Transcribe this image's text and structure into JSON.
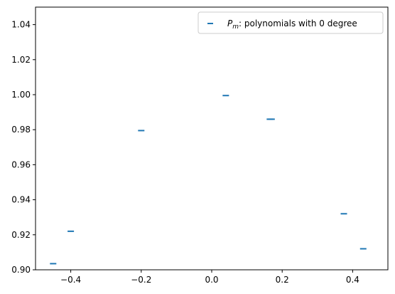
{
  "chart_data": {
    "type": "scatter",
    "marker": "hline",
    "color": "#1f77b4",
    "title": "",
    "xlabel": "",
    "ylabel": "",
    "xlim": [
      -0.5,
      0.5
    ],
    "ylim": [
      0.9,
      1.05
    ],
    "xticks": [
      -0.4,
      -0.2,
      0.0,
      0.2,
      0.4
    ],
    "xtick_labels": [
      "−0.4",
      "−0.2",
      "0.0",
      "0.2",
      "0.4"
    ],
    "yticks": [
      0.9,
      0.92,
      0.94,
      0.96,
      0.98,
      1.0,
      1.02,
      1.04
    ],
    "ytick_labels": [
      "0.90",
      "0.92",
      "0.94",
      "0.96",
      "0.98",
      "1.00",
      "1.02",
      "1.04"
    ],
    "grid": false,
    "legend_position": "top-right",
    "series": [
      {
        "name_math": "P",
        "name_sub": "m",
        "name_rest": ": polynomials with 0 degree",
        "x": [
          -0.45,
          -0.4,
          -0.2,
          0.04,
          0.165,
          0.17,
          0.375,
          0.43
        ],
        "y": [
          0.9035,
          0.922,
          0.9795,
          0.9995,
          0.986,
          0.986,
          0.932,
          0.912
        ]
      }
    ]
  }
}
